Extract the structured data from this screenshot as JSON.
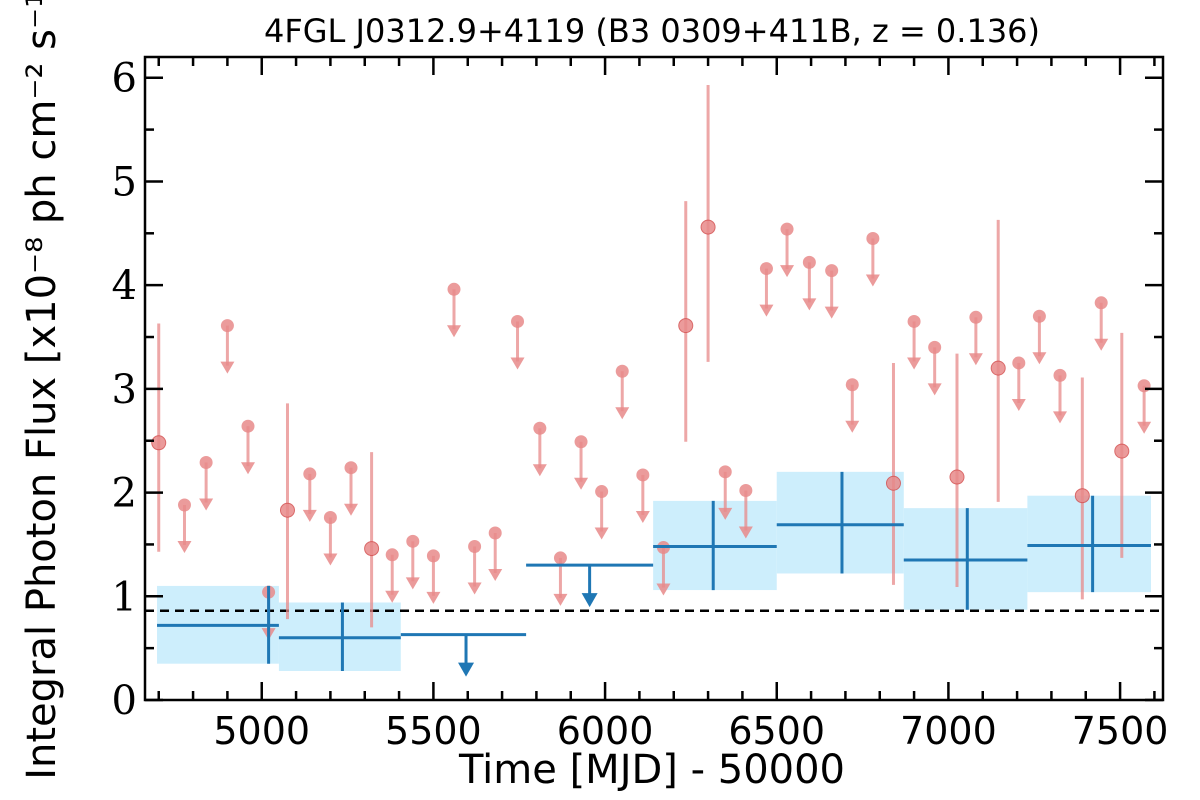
{
  "chart_data": {
    "type": "scatter",
    "title": "4FGL J0312.9+4119 (B3 0309+411B, z = 0.136)",
    "xlabel": "Time [MJD] - 50000",
    "ylabel": "Integral Photon Flux [x10⁻⁸ ph cm⁻² s⁻¹]",
    "xlim": [
      4660,
      7625
    ],
    "ylim": [
      0,
      6.2
    ],
    "xticks": [
      5000,
      5500,
      6000,
      6500,
      7000,
      7500
    ],
    "yticks": [
      0,
      1,
      2,
      3,
      4,
      5,
      6
    ],
    "grid": false,
    "reference_line": {
      "y": 0.86,
      "style": "dashed"
    },
    "colors": {
      "short_bins": "#e88a8a",
      "long_bins": "#1f77b4",
      "long_bins_band": "#cdeefc",
      "reference": "#000000"
    },
    "short_bins_detections": [
      {
        "x": 4700,
        "y": 2.48,
        "lo": 1.43,
        "hi": 3.63
      },
      {
        "x": 5075,
        "y": 1.83,
        "lo": 0.78,
        "hi": 2.86
      },
      {
        "x": 5320,
        "y": 1.46,
        "lo": 0.7,
        "hi": 2.39
      },
      {
        "x": 6235,
        "y": 3.61,
        "lo": 2.49,
        "hi": 4.81
      },
      {
        "x": 6300,
        "y": 4.56,
        "lo": 3.26,
        "hi": 5.93
      },
      {
        "x": 6840,
        "y": 2.09,
        "lo": 1.11,
        "hi": 3.25
      },
      {
        "x": 7025,
        "y": 2.15,
        "lo": 1.09,
        "hi": 3.34
      },
      {
        "x": 7145,
        "y": 3.2,
        "lo": 1.91,
        "hi": 4.63
      },
      {
        "x": 7390,
        "y": 1.97,
        "lo": 0.97,
        "hi": 3.11
      },
      {
        "x": 7505,
        "y": 2.4,
        "lo": 1.37,
        "hi": 3.54
      }
    ],
    "short_bins_upper_limits": [
      {
        "x": 4775,
        "y": 1.88
      },
      {
        "x": 4838,
        "y": 2.29
      },
      {
        "x": 4900,
        "y": 3.61
      },
      {
        "x": 4960,
        "y": 2.64
      },
      {
        "x": 5020,
        "y": 1.04
      },
      {
        "x": 5140,
        "y": 2.18
      },
      {
        "x": 5200,
        "y": 1.76
      },
      {
        "x": 5260,
        "y": 2.24
      },
      {
        "x": 5380,
        "y": 1.4
      },
      {
        "x": 5440,
        "y": 1.53
      },
      {
        "x": 5500,
        "y": 1.39
      },
      {
        "x": 5560,
        "y": 3.96
      },
      {
        "x": 5620,
        "y": 1.48
      },
      {
        "x": 5680,
        "y": 1.61
      },
      {
        "x": 5745,
        "y": 3.65
      },
      {
        "x": 5810,
        "y": 2.62
      },
      {
        "x": 5870,
        "y": 1.37
      },
      {
        "x": 5930,
        "y": 2.49
      },
      {
        "x": 5990,
        "y": 2.01
      },
      {
        "x": 6050,
        "y": 3.17
      },
      {
        "x": 6110,
        "y": 2.17
      },
      {
        "x": 6170,
        "y": 1.47
      },
      {
        "x": 6350,
        "y": 2.2
      },
      {
        "x": 6410,
        "y": 2.02
      },
      {
        "x": 6470,
        "y": 4.16
      },
      {
        "x": 6530,
        "y": 4.54
      },
      {
        "x": 6595,
        "y": 4.22
      },
      {
        "x": 6660,
        "y": 4.14
      },
      {
        "x": 6720,
        "y": 3.04
      },
      {
        "x": 6780,
        "y": 4.45
      },
      {
        "x": 6900,
        "y": 3.65
      },
      {
        "x": 6960,
        "y": 3.4
      },
      {
        "x": 7080,
        "y": 3.69
      },
      {
        "x": 7205,
        "y": 3.25
      },
      {
        "x": 7265,
        "y": 3.7
      },
      {
        "x": 7325,
        "y": 3.13
      },
      {
        "x": 7445,
        "y": 3.83
      },
      {
        "x": 7570,
        "y": 3.03
      }
    ],
    "long_bins_detections": [
      {
        "x": 5020,
        "xlo": 4695,
        "xhi": 5050,
        "y": 0.72,
        "lo": 0.35,
        "hi": 1.1
      },
      {
        "x": 5235,
        "xlo": 5050,
        "xhi": 5405,
        "y": 0.6,
        "lo": 0.28,
        "hi": 0.94
      },
      {
        "x": 6315,
        "xlo": 6140,
        "xhi": 6500,
        "y": 1.48,
        "lo": 1.06,
        "hi": 1.92
      },
      {
        "x": 6690,
        "xlo": 6500,
        "xhi": 6870,
        "y": 1.69,
        "lo": 1.22,
        "hi": 2.2
      },
      {
        "x": 7055,
        "xlo": 6870,
        "xhi": 7230,
        "y": 1.35,
        "lo": 0.87,
        "hi": 1.85
      },
      {
        "x": 7420,
        "xlo": 7230,
        "xhi": 7590,
        "y": 1.49,
        "lo": 1.04,
        "hi": 1.97
      }
    ],
    "long_bins_bands": [
      {
        "xlo": 4695,
        "xhi": 5050,
        "lo": 0.35,
        "hi": 1.1
      },
      {
        "xlo": 5050,
        "xhi": 5405,
        "lo": 0.28,
        "hi": 0.94
      },
      {
        "xlo": 6140,
        "xhi": 6500,
        "lo": 1.06,
        "hi": 1.92
      },
      {
        "xlo": 6500,
        "xhi": 6870,
        "lo": 1.22,
        "hi": 2.2
      },
      {
        "xlo": 6870,
        "xhi": 7230,
        "lo": 0.87,
        "hi": 1.85
      },
      {
        "xlo": 7230,
        "xhi": 7590,
        "lo": 1.04,
        "hi": 1.97
      }
    ],
    "long_bins_upper_limits": [
      {
        "x": 5595,
        "xlo": 5405,
        "xhi": 5770,
        "y": 0.63
      },
      {
        "x": 5955,
        "xlo": 5770,
        "xhi": 6140,
        "y": 1.3
      }
    ]
  }
}
